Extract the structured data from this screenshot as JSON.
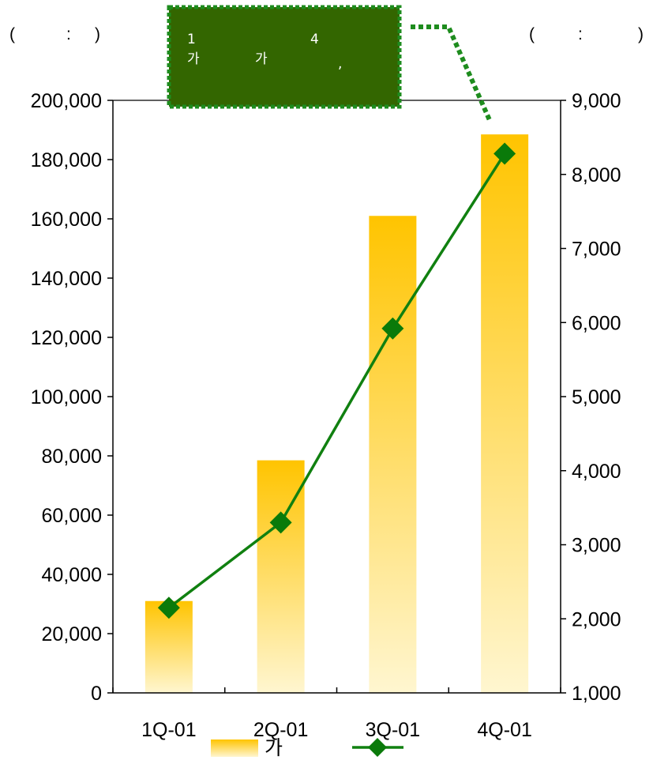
{
  "colors": {
    "bar_top": "#ffc400",
    "bar_bottom": "#fff6d0",
    "line": "#108010",
    "marker": "#0a7a0a",
    "callout_fill": "#336600",
    "callout_border": "#1e8c1e",
    "axis": "#000000"
  },
  "units": {
    "left": [
      "(",
      ":",
      ")"
    ],
    "right": [
      "(",
      ":",
      ")"
    ]
  },
  "callout": {
    "line1": [
      "1",
      "4"
    ],
    "line2": [
      "가",
      "가",
      ","
    ]
  },
  "legend": {
    "bar_label": "가",
    "line_label": ""
  },
  "chart_data": {
    "type": "bar",
    "categories": [
      "1Q-01",
      "2Q-01",
      "3Q-01",
      "4Q-01"
    ],
    "series": [
      {
        "type": "bar",
        "axis": "left",
        "values": [
          31000,
          78500,
          161000,
          188500
        ]
      },
      {
        "type": "line",
        "axis": "right",
        "values": [
          2150,
          3300,
          5920,
          8280
        ]
      }
    ],
    "y_left": {
      "min": 0,
      "max": 200000,
      "step": 20000,
      "ticks": [
        "0",
        "20,000",
        "40,000",
        "60,000",
        "80,000",
        "100,000",
        "120,000",
        "140,000",
        "160,000",
        "180,000",
        "200,000"
      ]
    },
    "y_right": {
      "min": 1000,
      "max": 9000,
      "step": 1000,
      "ticks": [
        "1,000",
        "2,000",
        "3,000",
        "4,000",
        "5,000",
        "6,000",
        "7,000",
        "8,000",
        "9,000"
      ]
    },
    "grid": false,
    "legend_position": "bottom"
  }
}
